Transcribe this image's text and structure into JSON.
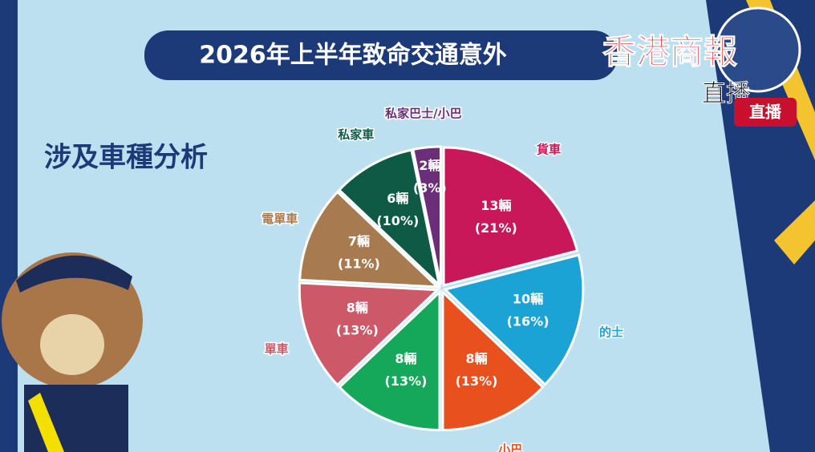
{
  "chart_data": {
    "type": "pie",
    "title": "2026年上半年致命交通意外",
    "subtitle": "涉及車種分析",
    "categories": [
      "貨車",
      "的士",
      "小巴",
      null,
      "單車",
      "電單車",
      "私家車",
      "私家巴士/小巴"
    ],
    "values": [
      13,
      10,
      8,
      8,
      8,
      7,
      6,
      2
    ],
    "value_labels": [
      "13輛",
      "10輛",
      "8輛",
      "8輛",
      "8輛",
      "7輛",
      "6輛",
      "2輛"
    ],
    "percents": [
      21,
      16,
      13,
      13,
      13,
      11,
      10,
      3
    ],
    "percent_labels": [
      "(21%)",
      "(16%)",
      "(13%)",
      "(13%)",
      "(13%)",
      "(11%)",
      "(10%)",
      "(3%)"
    ],
    "colors": [
      "#c8185a",
      "#1ba3d6",
      "#e8501e",
      "#16a85a",
      "#cc5868",
      "#a87a50",
      "#0f5a45",
      "#6b2f7a"
    ]
  },
  "overlay": {
    "brand": "香港商報",
    "live_text": "直播",
    "live_badge": "直播"
  }
}
